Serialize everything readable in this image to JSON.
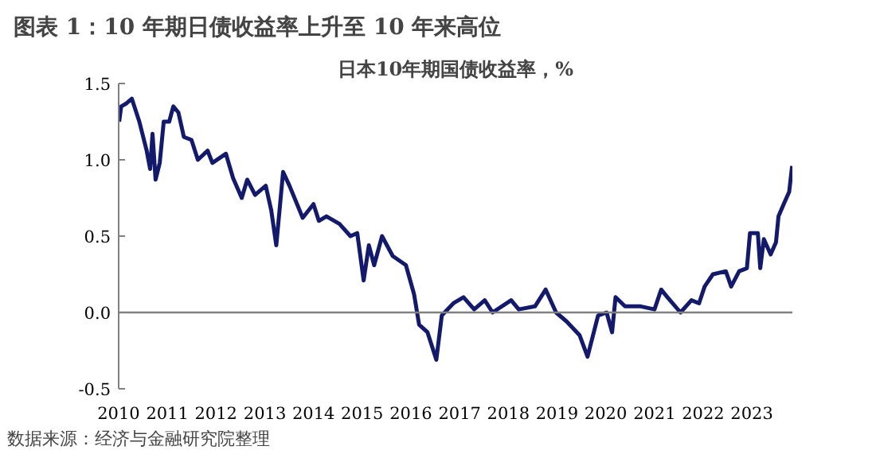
{
  "chart_data": {
    "type": "line",
    "title": "图表 1：10 年期日债收益率上升至 10 年来高位",
    "subtitle": "日本10年期国债收益率，%",
    "annotations": [
      "数据来源：经济与金融研究院整理"
    ],
    "x": [
      "2010-01-05",
      "2010-01-20",
      "2010-03-01",
      "2010-04-10",
      "2010-06-05",
      "2010-07-30",
      "2010-08-25",
      "2010-09-12",
      "2010-10-05",
      "2010-11-05",
      "2010-12-05",
      "2011-01-15",
      "2011-02-15",
      "2011-03-25",
      "2011-05-05",
      "2011-07-01",
      "2011-08-18",
      "2011-10-30",
      "2011-12-05",
      "2012-03-15",
      "2012-05-08",
      "2012-07-12",
      "2012-08-22",
      "2012-10-20",
      "2013-01-08",
      "2013-02-18",
      "2013-03-28",
      "2013-05-18",
      "2013-07-05",
      "2013-10-12",
      "2014-01-01",
      "2014-02-10",
      "2014-04-08",
      "2014-07-15",
      "2014-10-05",
      "2014-11-25",
      "2015-01-12",
      "2015-02-20",
      "2015-04-01",
      "2015-05-30",
      "2015-08-18",
      "2015-11-25",
      "2016-01-25",
      "2016-03-03",
      "2016-05-05",
      "2016-07-10",
      "2016-08-20",
      "2016-11-15",
      "2017-01-30",
      "2017-04-20",
      "2017-07-08",
      "2017-09-05",
      "2018-01-22",
      "2018-03-20",
      "2018-07-20",
      "2018-10-08",
      "2018-12-25",
      "2019-03-15",
      "2019-06-20",
      "2019-08-18",
      "2019-11-05",
      "2020-01-08",
      "2020-02-18",
      "2020-03-15",
      "2020-05-25",
      "2020-09-20",
      "2021-01-01",
      "2021-02-20",
      "2021-04-08",
      "2021-07-15",
      "2021-10-05",
      "2021-12-01",
      "2022-01-12",
      "2022-03-15",
      "2022-06-20",
      "2022-07-30",
      "2022-09-28",
      "2022-11-25",
      "2022-12-18",
      "2023-02-15",
      "2023-03-05",
      "2023-04-01",
      "2023-05-22",
      "2023-07-01",
      "2023-07-20",
      "2023-08-28",
      "2023-10-08",
      "2023-10-30"
    ],
    "series": [
      {
        "color": "#141a6b",
        "values": [
          1.25,
          1.35,
          1.37,
          1.4,
          1.25,
          1.06,
          0.94,
          1.17,
          0.87,
          0.98,
          1.25,
          1.25,
          1.35,
          1.31,
          1.15,
          1.13,
          1.0,
          1.06,
          0.98,
          1.04,
          0.88,
          0.75,
          0.87,
          0.77,
          0.83,
          0.67,
          0.44,
          0.92,
          0.83,
          0.62,
          0.71,
          0.6,
          0.63,
          0.58,
          0.5,
          0.52,
          0.21,
          0.44,
          0.31,
          0.5,
          0.37,
          0.31,
          0.12,
          -0.08,
          -0.13,
          -0.31,
          -0.02,
          0.06,
          0.1,
          0.02,
          0.08,
          0.0,
          0.08,
          0.02,
          0.04,
          0.15,
          0.0,
          -0.06,
          -0.15,
          -0.29,
          -0.02,
          0.0,
          -0.13,
          0.1,
          0.04,
          0.04,
          0.02,
          0.15,
          0.1,
          0.0,
          0.08,
          0.06,
          0.17,
          0.25,
          0.27,
          0.17,
          0.27,
          0.29,
          0.52,
          0.52,
          0.29,
          0.48,
          0.38,
          0.46,
          0.63,
          0.71,
          0.79,
          0.96
        ]
      }
    ],
    "xlim": [
      "2010-01-01",
      "2023-11-01"
    ],
    "xticks": [
      {
        "value": "2010-01-01",
        "label": "2010"
      },
      {
        "value": "2011-01-01",
        "label": "2011"
      },
      {
        "value": "2012-01-01",
        "label": "2012"
      },
      {
        "value": "2013-01-01",
        "label": "2013"
      },
      {
        "value": "2014-01-01",
        "label": "2014"
      },
      {
        "value": "2015-01-01",
        "label": "2015"
      },
      {
        "value": "2016-01-01",
        "label": "2016"
      },
      {
        "value": "2017-01-01",
        "label": "2017"
      },
      {
        "value": "2018-01-01",
        "label": "2018"
      },
      {
        "value": "2019-01-01",
        "label": "2019"
      },
      {
        "value": "2020-01-01",
        "label": "2020"
      },
      {
        "value": "2021-01-01",
        "label": "2021"
      },
      {
        "value": "2022-01-01",
        "label": "2022"
      },
      {
        "value": "2023-01-01",
        "label": "2023"
      }
    ],
    "ylim": [
      -0.5,
      1.5
    ],
    "yticks": [
      {
        "value": -0.5,
        "label": "-0.5"
      },
      {
        "value": 0,
        "label": "0.0"
      },
      {
        "value": 0.5,
        "label": "0.5"
      },
      {
        "value": 1,
        "label": "1.0"
      },
      {
        "value": 1.5,
        "label": "1.5"
      }
    ],
    "ref_lines": [
      {
        "axis": "y",
        "value": 0,
        "color": "#808080"
      }
    ],
    "grid": false
  }
}
